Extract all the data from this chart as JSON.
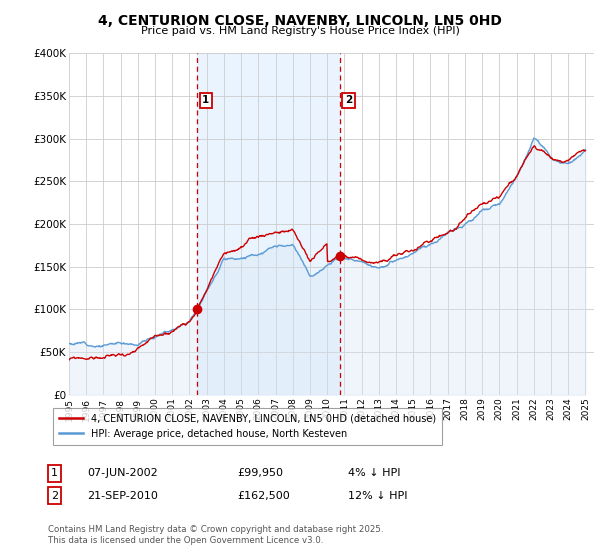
{
  "title": "4, CENTURION CLOSE, NAVENBY, LINCOLN, LN5 0HD",
  "subtitle": "Price paid vs. HM Land Registry's House Price Index (HPI)",
  "ylabel_ticks": [
    "£0",
    "£50K",
    "£100K",
    "£150K",
    "£200K",
    "£250K",
    "£300K",
    "£350K",
    "£400K"
  ],
  "ytick_values": [
    0,
    50000,
    100000,
    150000,
    200000,
    250000,
    300000,
    350000,
    400000
  ],
  "ylim": [
    0,
    400000
  ],
  "hpi_color": "#5b9bd5",
  "hpi_fill_color": "#d6e4f5",
  "price_color": "#cc0000",
  "vline_color": "#cc0000",
  "shade_color": "#ddeeff",
  "marker1_x": 2002.44,
  "marker1_y": 99950,
  "marker2_x": 2010.72,
  "marker2_y": 162500,
  "legend_label1": "4, CENTURION CLOSE, NAVENBY, LINCOLN, LN5 0HD (detached house)",
  "legend_label2": "HPI: Average price, detached house, North Kesteven",
  "annotation1_label": "1",
  "annotation2_label": "2",
  "table_row1": [
    "1",
    "07-JUN-2002",
    "£99,950",
    "4% ↓ HPI"
  ],
  "table_row2": [
    "2",
    "21-SEP-2010",
    "£162,500",
    "12% ↓ HPI"
  ],
  "footer": "Contains HM Land Registry data © Crown copyright and database right 2025.\nThis data is licensed under the Open Government Licence v3.0.",
  "xlim_start": 1995,
  "xlim_end": 2025.5
}
